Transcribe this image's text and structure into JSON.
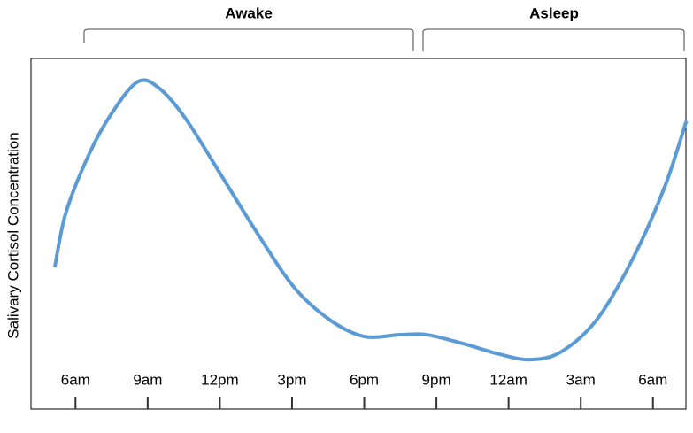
{
  "chart_data": {
    "type": "line",
    "y_label": "Salivary Cortisol Concentration",
    "annotations": [
      "Awake",
      "Asleep"
    ],
    "xlim": [
      4.15,
      31.37
    ],
    "ylim": [
      0,
      100
    ],
    "xticks": [
      {
        "value": 6,
        "label": "6am"
      },
      {
        "value": 9,
        "label": "9am"
      },
      {
        "value": 12,
        "label": "12pm"
      },
      {
        "value": 15,
        "label": "3pm"
      },
      {
        "value": 18,
        "label": "6pm"
      },
      {
        "value": 21,
        "label": "9pm"
      },
      {
        "value": 24,
        "label": "12am"
      },
      {
        "value": 27,
        "label": "3am"
      },
      {
        "value": 30,
        "label": "6am"
      }
    ],
    "x": [
      5.15,
      5.6,
      6.55,
      7.5,
      8.6,
      9.5,
      10.6,
      12.1,
      13.6,
      15.1,
      16.6,
      18.0,
      19.5,
      20.6,
      22.1,
      23.6,
      24.9,
      26.2,
      27.7,
      29.2,
      30.5,
      31.37
    ],
    "series": [
      {
        "color": "#5b9bd5",
        "values": [
          40.9,
          56,
          72.5,
          84.3,
          93.4,
          91.4,
          82.6,
          66.2,
          49.7,
          34.6,
          25.3,
          20.7,
          21.2,
          21.2,
          18.7,
          15.7,
          14.1,
          16.4,
          25.8,
          43.4,
          63.6,
          81.8
        ]
      }
    ]
  }
}
